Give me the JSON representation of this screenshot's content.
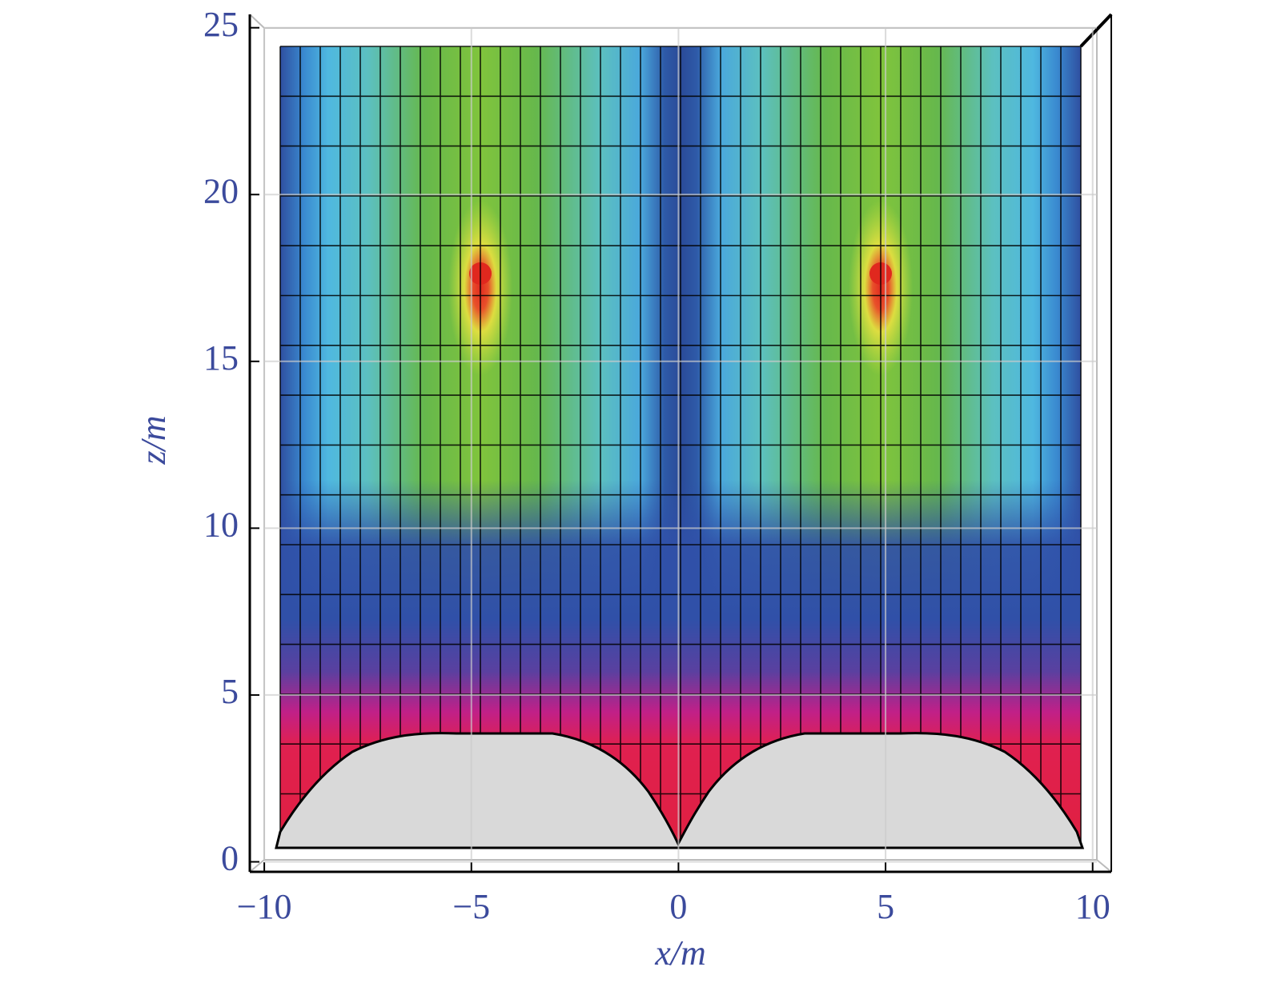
{
  "chart_data": {
    "type": "heatmap",
    "xlabel": "x/m",
    "ylabel": "z/m",
    "xlim": [
      -10.35,
      10.45
    ],
    "ylim": [
      -0.3,
      25.4
    ],
    "xticks": [
      {
        "value": -10,
        "label": "−10"
      },
      {
        "value": -5,
        "label": "−5"
      },
      0,
      5,
      10
    ],
    "yticks": [
      0,
      5,
      10,
      15,
      20,
      25
    ]
  }
}
